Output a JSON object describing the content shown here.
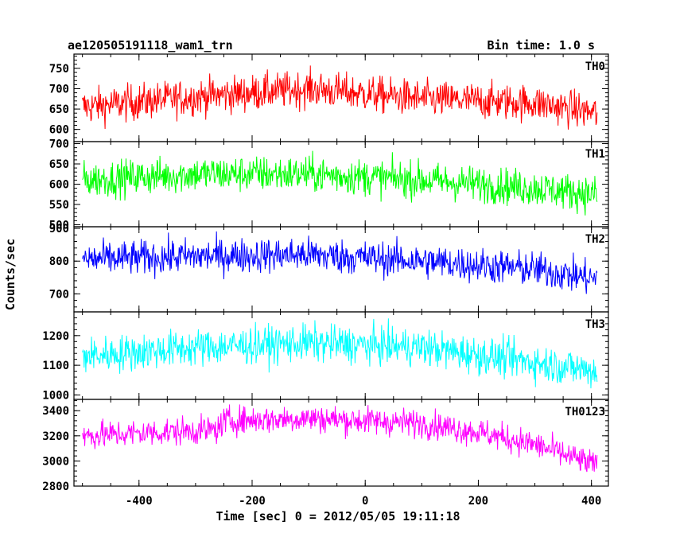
{
  "header": {
    "title": "ae120505191118_wam1_trn",
    "bin_time": "Bin time: 1.0 s"
  },
  "chart_data": {
    "type": "line",
    "xlabel": "Time [sec] 0 = 2012/05/05 19:11:18",
    "ylabel": "Counts/sec",
    "xlim": [
      -515,
      430
    ],
    "xticks": [
      -400,
      -200,
      0,
      200,
      400
    ],
    "x_range": [
      -500,
      410
    ],
    "bin": 1.0,
    "panels": [
      {
        "name": "TH0",
        "color": "#ff0000",
        "ylim": [
          570,
          785
        ],
        "yticks": [
          600,
          650,
          700,
          750
        ],
        "trend": [
          [
            -500,
            655
          ],
          [
            -300,
            680
          ],
          [
            -100,
            700
          ],
          [
            100,
            675
          ],
          [
            300,
            665
          ],
          [
            410,
            640
          ]
        ],
        "noise": 32
      },
      {
        "name": "TH1",
        "color": "#00ff00",
        "ylim": [
          495,
          705
        ],
        "yticks": [
          500,
          550,
          600,
          650,
          700
        ],
        "trend": [
          [
            -500,
            610
          ],
          [
            -300,
            625
          ],
          [
            -100,
            625
          ],
          [
            100,
            610
          ],
          [
            300,
            590
          ],
          [
            410,
            575
          ]
        ],
        "noise": 32
      },
      {
        "name": "TH2",
        "color": "#0000ff",
        "ylim": [
          645,
          905
        ],
        "yticks": [
          700,
          800,
          900
        ],
        "trend": [
          [
            -500,
            805
          ],
          [
            -300,
            815
          ],
          [
            -100,
            820
          ],
          [
            100,
            800
          ],
          [
            300,
            775
          ],
          [
            410,
            745
          ]
        ],
        "noise": 38
      },
      {
        "name": "TH3",
        "color": "#00ffff",
        "ylim": [
          985,
          1280
        ],
        "yticks": [
          1000,
          1100,
          1200
        ],
        "trend": [
          [
            -500,
            1130
          ],
          [
            -300,
            1160
          ],
          [
            -100,
            1175
          ],
          [
            100,
            1160
          ],
          [
            300,
            1110
          ],
          [
            410,
            1080
          ]
        ],
        "noise": 45
      },
      {
        "name": "TH0123",
        "color": "#ff00ff",
        "ylim": [
          2800,
          3490
        ],
        "yticks": [
          2800,
          3000,
          3200,
          3400
        ],
        "trend": [
          [
            -500,
            3200
          ],
          [
            -260,
            3250
          ],
          [
            -250,
            3320
          ],
          [
            -100,
            3340
          ],
          [
            100,
            3300
          ],
          [
            200,
            3230
          ],
          [
            300,
            3130
          ],
          [
            410,
            2960
          ]
        ],
        "noise": 80
      }
    ]
  }
}
